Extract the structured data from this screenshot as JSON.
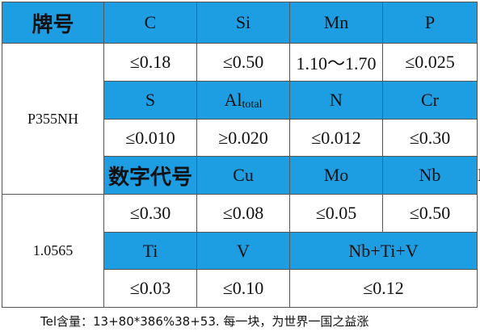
{
  "table": {
    "rows": [
      [
        "牌号",
        "C",
        "Si",
        "Mn",
        "P"
      ],
      [
        "P355NH",
        "≤0.18",
        "≤0.50",
        "1.10～1.70",
        "≤0.025"
      ],
      [
        "S",
        {
          "symbol": "Al",
          "subscript": "total"
        },
        "N",
        "Cr"
      ],
      [
        "≤0.010",
        "≥0.020",
        "≤0.012",
        "≤0.30"
      ],
      [
        "数字代号",
        "Cu",
        "Mo",
        "Nb",
        "Ni"
      ],
      [
        "1.0565",
        "≤0.30",
        "≤0.08",
        "≤0.05",
        "≤0.50"
      ],
      [
        "Ti",
        "V",
        "Nb+Ti+V"
      ],
      [
        "≤0.03",
        "≤0.10",
        "≤0.12"
      ]
    ]
  },
  "footer": "Tel含量：13+80*386%38+53. 每一块，为世界一国之益涨"
}
